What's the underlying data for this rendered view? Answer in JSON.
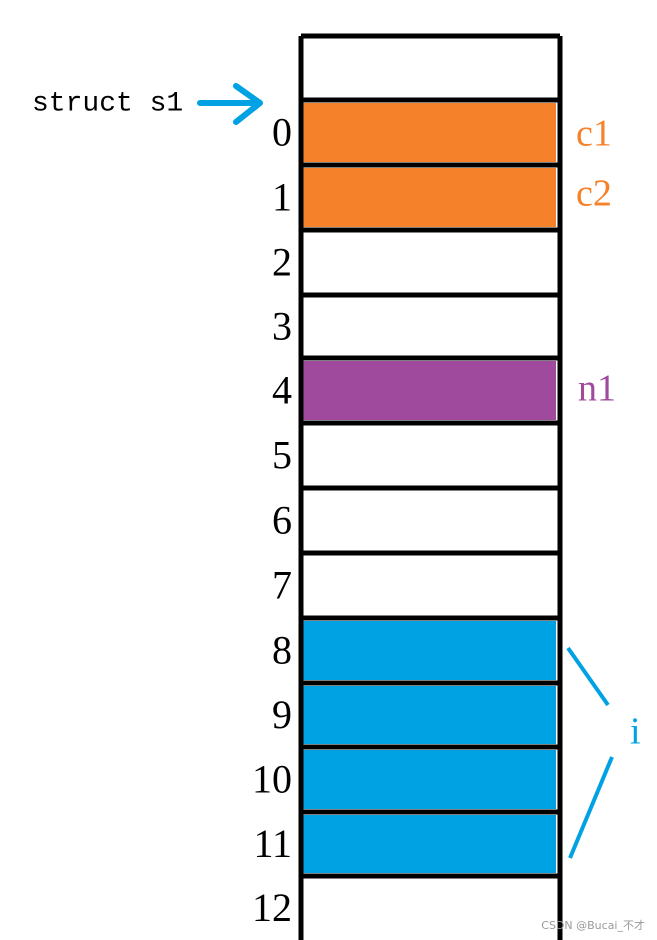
{
  "pointer": {
    "label": "struct s1"
  },
  "offsets": [
    0,
    1,
    2,
    3,
    4,
    5,
    6,
    7,
    8,
    9,
    10,
    11,
    12
  ],
  "members": [
    {
      "label": "c1",
      "color": "#f5822a"
    },
    {
      "label": "c2",
      "color": "#f5822a"
    },
    {
      "label": "n1",
      "color": "#a04a9e"
    },
    {
      "label": "i",
      "color": "#00a2e4"
    }
  ],
  "watermark": "CSDN @Bucai_不才"
}
